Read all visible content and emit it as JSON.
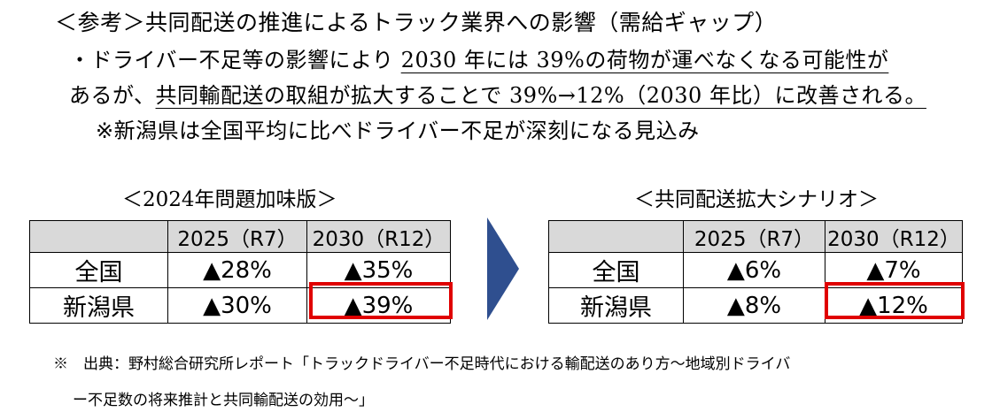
{
  "title": "＜参考＞共同配送の推進によるトラック業界への影響（需給ギャップ）",
  "body": {
    "line1_plain": "・ドライバー不足等の影響により ",
    "line1_underlined": "2030 年には 39%の荷物が運べなくなる可能性が",
    "line2_plain": "あるが、",
    "line2_underlined": "共同輸配送の取組が拡大することで 39%→12%（2030 年比）に改善される。",
    "line3": "※新潟県は全国平均に比べドライバー不足が深刻になる見込み"
  },
  "left_table": {
    "caption": "＜2024年問題加味版＞",
    "headers": [
      "",
      "2025（R7）",
      "2030（R12）"
    ],
    "rows": [
      {
        "label": "全国",
        "v2025": "▲28%",
        "v2030": "▲35%"
      },
      {
        "label": "新潟県",
        "v2025": "▲30%",
        "v2030": "▲39%"
      }
    ],
    "highlighted_cell": "新潟県 2030（R12）"
  },
  "right_table": {
    "caption": "＜共同配送拡大シナリオ＞",
    "headers": [
      "",
      "2025（R7）",
      "2030（R12）"
    ],
    "rows": [
      {
        "label": "全国",
        "v2025": "▲6%",
        "v2030": "▲7%"
      },
      {
        "label": "新潟県",
        "v2025": "▲8%",
        "v2030": "▲12%"
      }
    ],
    "highlighted_cell": "新潟県 2030（R12）"
  },
  "arrow_icon": "chevron-right-arrow",
  "colors": {
    "arrow": "#2f4f8f",
    "highlight": "#e00000",
    "header_bg": "#d9d9d9"
  },
  "source_note": {
    "line1": "※　出典：野村総合研究所レポート「トラックドライバー不足時代における輸配送のあり方～地域別ドライバ",
    "line2": "ー不足数の将来推計と共同輸配送の効用～」"
  }
}
